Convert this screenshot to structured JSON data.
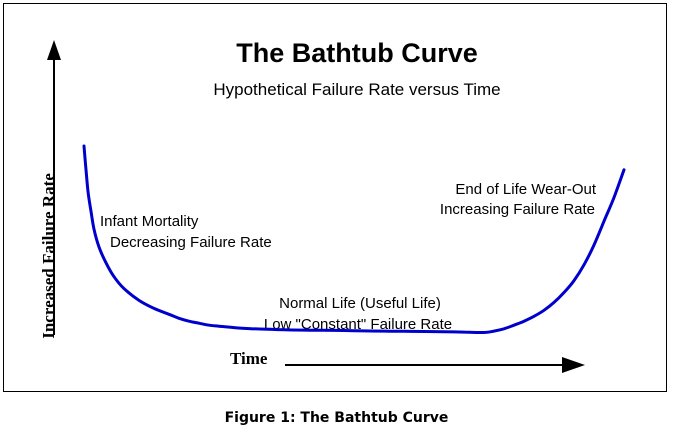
{
  "chart_data": {
    "type": "line",
    "title": "The Bathtub Curve",
    "subtitle": "Hypothetical Failure Rate versus Time",
    "xlabel": "Time",
    "ylabel": "Increased Failure Rate",
    "annotations": {
      "infant": [
        "Infant Mortality",
        "Decreasing Failure Rate"
      ],
      "normal": [
        "Normal Life (Useful Life)",
        "Low \"Constant\" Failure Rate"
      ],
      "wearout": [
        "End of Life Wear-Out",
        "Increasing Failure Rate"
      ]
    },
    "series": [
      {
        "color": "#0000cc",
        "x": [
          0,
          2,
          4,
          7,
          10,
          15,
          22,
          30,
          40,
          55,
          70,
          85,
          95,
          105,
          115,
          125,
          135,
          150,
          165,
          180,
          200,
          220,
          240,
          260,
          280,
          300,
          320,
          340,
          360,
          380,
          400,
          410,
          420,
          430,
          440,
          450,
          460,
          470,
          480,
          490,
          500,
          510,
          520,
          530,
          540
        ],
        "y": [
          100,
          88,
          77,
          67,
          58,
          49,
          41,
          34,
          28,
          22,
          18,
          15,
          13,
          11.5,
          10.5,
          9.5,
          9,
          8.3,
          7.8,
          7.5,
          7.2,
          7,
          6.9,
          6.8,
          6.6,
          6.5,
          6.4,
          6.3,
          6.2,
          6,
          5.8,
          6.5,
          7.7,
          9.5,
          11.5,
          14,
          17,
          21,
          26,
          32,
          40,
          50,
          62,
          74,
          88
        ]
      }
    ]
  },
  "caption": "Figure 1: The Bathtub Curve"
}
